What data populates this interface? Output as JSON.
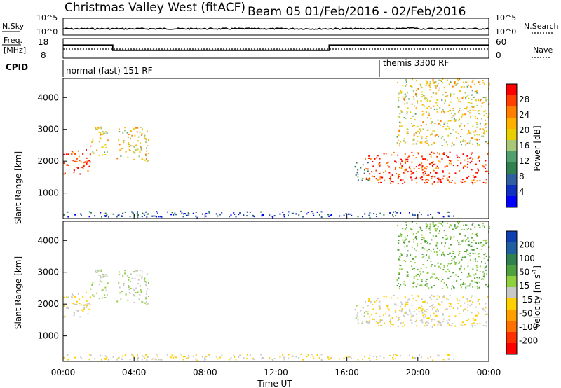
{
  "header": {
    "title_left": "Christmas Valley West (fitACF)",
    "title_right": "Beam 05  01/Feb/2016 - 02/Feb/2016"
  },
  "top_panels": {
    "nsky_label": "N.Sky",
    "nsky_ticks": [
      "10^5",
      "10^0"
    ],
    "nsearch_label": "N.Search",
    "nsearch_ticks": [
      "10^5",
      "10^0"
    ],
    "freq_label_1": "Freq.",
    "freq_label_2": "[MHz]",
    "freq_ticks": [
      "18",
      "8"
    ],
    "nave_label": "Nave",
    "nave_ticks": [
      "60",
      "0"
    ],
    "cpid_label": "CPID",
    "cpid_segments": [
      "normal (fast) 151 RF",
      "themis 3300 RF"
    ]
  },
  "axes": {
    "range_ylabel": "Slant Range [km]",
    "range_ticks": [
      "4000",
      "3000",
      "2000",
      "1000"
    ],
    "time_ticks": [
      "00:00",
      "04:00",
      "08:00",
      "12:00",
      "16:00",
      "20:00",
      "00:00"
    ],
    "xlabel": "Time UT"
  },
  "power_colorbar": {
    "label": "Power [dB]",
    "ticks": [
      "28",
      "24",
      "20",
      "16",
      "12",
      "8",
      "4"
    ],
    "colors": [
      "#ff0000",
      "#ff4000",
      "#ff8000",
      "#ffb000",
      "#e8d000",
      "#a8c878",
      "#50a070",
      "#308050",
      "#3060a0",
      "#1030c0",
      "#0000ff"
    ]
  },
  "velocity_colorbar": {
    "label": "Velocity [m s",
    "label_sup": "-1",
    "label_end": "]",
    "ticks": [
      "200",
      "100",
      "50",
      "15",
      "-15",
      "-50",
      "-100",
      "-200"
    ],
    "colors": [
      "#1040b0",
      "#2060a0",
      "#308050",
      "#50a040",
      "#90d040",
      "#c8c8c8",
      "#ffd000",
      "#ffa000",
      "#ff7000",
      "#ff3000",
      "#ff0000"
    ]
  },
  "chart_data": {
    "type": "heatmap",
    "title": "Christmas Valley West (fitACF) Beam 05 01/Feb/2016 - 02/Feb/2016",
    "xlabel": "Time UT",
    "ylabel": "Slant Range [km]",
    "xlim": [
      0,
      24
    ],
    "ylim": [
      200,
      4600
    ],
    "freq_mhz": [
      {
        "t_start": 0,
        "t_end": 2.8,
        "value": 15
      },
      {
        "t_start": 2.8,
        "t_end": 15.0,
        "value": 11
      },
      {
        "t_start": 15.0,
        "t_end": 24,
        "value": 15
      }
    ],
    "cpid": [
      {
        "t_start": 0,
        "t_end": 18.0,
        "name": "normal (fast) 151 RF"
      },
      {
        "t_start": 18.0,
        "t_end": 24,
        "name": "themis 3300 RF"
      }
    ],
    "scatter_regions": [
      {
        "t": [
          0,
          1.5
        ],
        "range": [
          1600,
          2400
        ],
        "power_db": 28,
        "velocity": -15
      },
      {
        "t": [
          1.5,
          2.5
        ],
        "range": [
          2200,
          3100
        ],
        "power_db": 20,
        "velocity": 15
      },
      {
        "t": [
          3.0,
          4.8
        ],
        "range": [
          2000,
          3100
        ],
        "power_db": 20,
        "velocity": 15
      },
      {
        "t": [
          0,
          22
        ],
        "range": [
          250,
          450
        ],
        "power_db": 8,
        "velocity": -15
      },
      {
        "t": [
          16.4,
          17.2
        ],
        "range": [
          1400,
          2000
        ],
        "power_db": 12,
        "velocity": 15
      },
      {
        "t": [
          17.0,
          24
        ],
        "range": [
          1300,
          2300
        ],
        "power_db": 28,
        "velocity": -15
      },
      {
        "t": [
          18.8,
          24
        ],
        "range": [
          2500,
          4600
        ],
        "power_db": 20,
        "velocity": 50
      }
    ]
  }
}
